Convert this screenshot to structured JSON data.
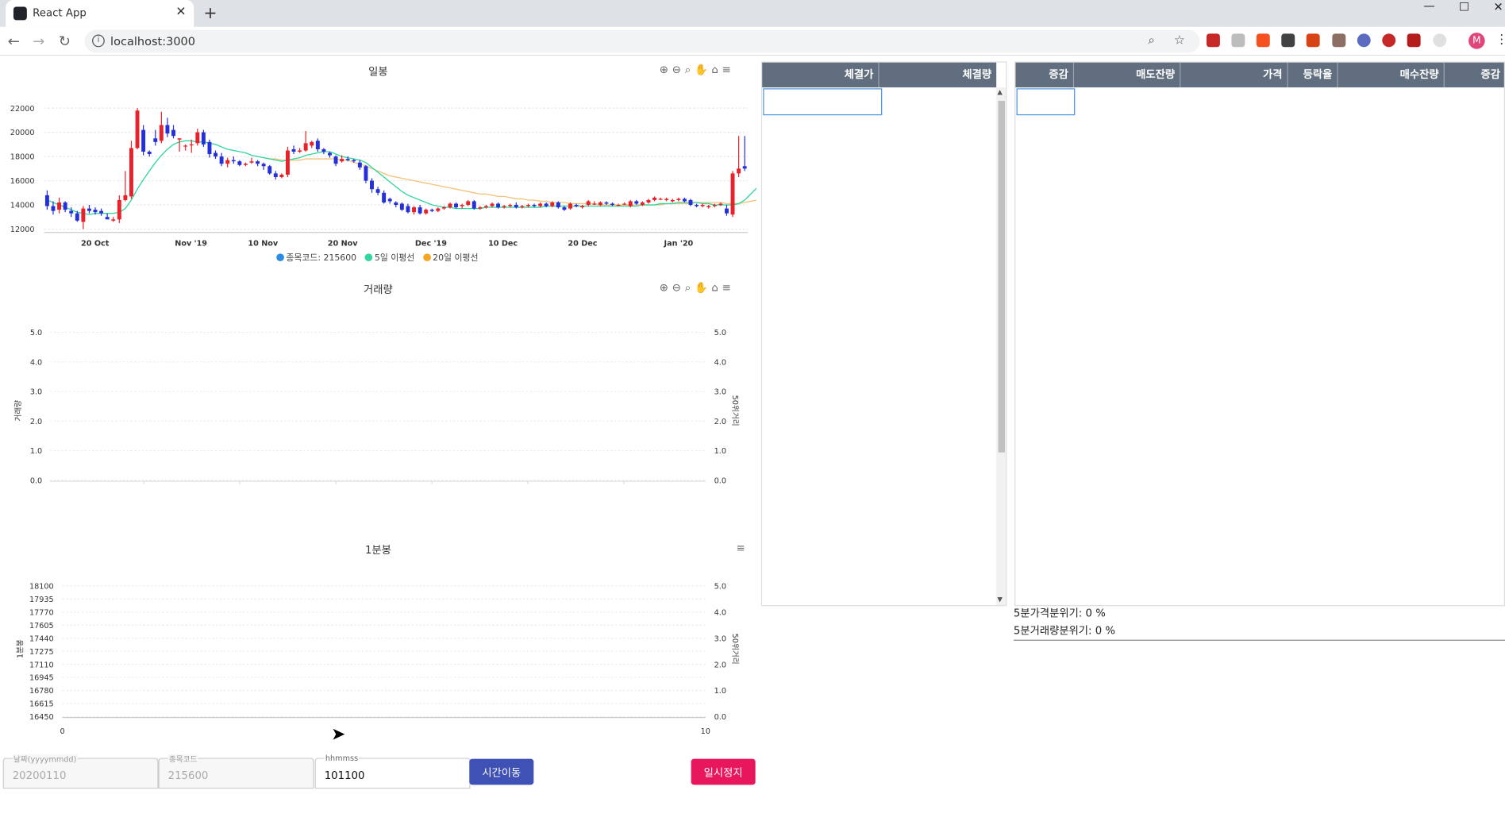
{
  "browser": {
    "tab_title": "React App",
    "tab_close": "✕",
    "new_tab": "+",
    "url": "localhost:3000",
    "avatar_letter": "M"
  },
  "daily_chart": {
    "title": "일봉",
    "legend": [
      {
        "label": "종목코드: 215600",
        "color": "#2b8ce6"
      },
      {
        "label": "5일 이평선",
        "color": "#33d69f"
      },
      {
        "label": "20일 이평선",
        "color": "#f5a623"
      }
    ]
  },
  "volume_chart": {
    "title": "거래량",
    "left_axis_title": "거래량",
    "right_axis_title": "50위거리"
  },
  "minute_chart": {
    "title": "1분봉",
    "left_axis_title": "1분봉",
    "right_axis_title": "50위거리"
  },
  "chart_data": [
    {
      "type": "candlestick",
      "title": "일봉",
      "x_ticks": [
        "20 Oct",
        "Nov '19",
        "10 Nov",
        "20 Nov",
        "Dec '19",
        "10 Dec",
        "20 Dec",
        "Jan '20"
      ],
      "y_ticks": [
        12000,
        14000,
        16000,
        18000,
        20000,
        22000
      ],
      "ylim": [
        11800,
        22600
      ],
      "up_color": "#e8212a",
      "down_color": "#2530d8",
      "candles": [
        [
          14800,
          13900,
          15200,
          13600
        ],
        [
          13900,
          13500,
          14300,
          13200
        ],
        [
          13600,
          14200,
          14600,
          13300
        ],
        [
          14200,
          13600,
          14300,
          13400
        ],
        [
          13500,
          13300,
          13800,
          13000
        ],
        [
          13300,
          12700,
          13500,
          12600
        ],
        [
          12600,
          13700,
          13900,
          12000
        ],
        [
          13700,
          13500,
          14000,
          13300
        ],
        [
          13600,
          13400,
          13800,
          13200
        ],
        [
          13500,
          13300,
          13700,
          13100
        ],
        [
          13000,
          12800,
          13300,
          12900
        ],
        [
          12700,
          12800,
          13000,
          12600
        ],
        [
          12800,
          14400,
          14800,
          12500
        ],
        [
          14400,
          14800,
          16800,
          14300
        ],
        [
          14700,
          18700,
          19300,
          14500
        ],
        [
          18700,
          21800,
          22000,
          18600
        ],
        [
          20200,
          18400,
          20600,
          18100
        ],
        [
          18400,
          18200,
          18500,
          18000
        ],
        [
          19500,
          19200,
          20200,
          18900
        ],
        [
          19300,
          20600,
          21700,
          19100
        ],
        [
          20600,
          19900,
          21200,
          19600
        ],
        [
          20200,
          19700,
          20600,
          19500
        ],
        [
          19400,
          19500,
          19500,
          18400
        ],
        [
          18900,
          18900,
          19000,
          18500
        ],
        [
          19000,
          19000,
          19400,
          18300
        ],
        [
          19100,
          20000,
          20300,
          18900
        ],
        [
          20000,
          19000,
          20200,
          18800
        ],
        [
          19200,
          18200,
          19400,
          17900
        ],
        [
          18300,
          18000,
          18500,
          17800
        ],
        [
          18000,
          17400,
          18300,
          17200
        ],
        [
          17400,
          17700,
          17900,
          17100
        ],
        [
          17700,
          17600,
          18000,
          17400
        ],
        [
          17600,
          17300,
          17700,
          17200
        ],
        [
          17300,
          17400,
          17500,
          17200
        ],
        [
          17500,
          17600,
          17900,
          17400
        ],
        [
          17600,
          17400,
          17700,
          17200
        ],
        [
          17400,
          17200,
          17500,
          16900
        ],
        [
          17200,
          16600,
          17300,
          16500
        ],
        [
          16600,
          16300,
          16800,
          16100
        ],
        [
          16300,
          16500,
          16600,
          16200
        ],
        [
          16500,
          18500,
          18800,
          16300
        ],
        [
          18600,
          18400,
          18900,
          18200
        ],
        [
          18400,
          18500,
          18700,
          18300
        ],
        [
          18500,
          19100,
          20100,
          18400
        ],
        [
          18900,
          19200,
          19300,
          18700
        ],
        [
          19300,
          18600,
          19500,
          18400
        ],
        [
          18600,
          18400,
          18700,
          18200
        ],
        [
          18300,
          18100,
          18400,
          17900
        ],
        [
          18000,
          17400,
          18100,
          17200
        ],
        [
          17600,
          17800,
          18100,
          17500
        ],
        [
          17800,
          17700,
          18000,
          17600
        ],
        [
          17700,
          17600,
          17800,
          17500
        ],
        [
          17500,
          17100,
          17700,
          16900
        ],
        [
          17200,
          16000,
          17300,
          15800
        ],
        [
          16000,
          15300,
          16200,
          15000
        ],
        [
          15300,
          15000,
          15500,
          14800
        ],
        [
          15000,
          14200,
          15200,
          14100
        ],
        [
          14500,
          14300,
          14600,
          14100
        ],
        [
          14200,
          14000,
          14300,
          13800
        ],
        [
          14100,
          13600,
          14200,
          13500
        ],
        [
          13900,
          13400,
          14100,
          13300
        ],
        [
          13400,
          13800,
          13900,
          13200
        ],
        [
          13800,
          13300,
          14000,
          13200
        ],
        [
          13300,
          13600,
          13700,
          13200
        ],
        [
          13600,
          13500,
          13700,
          13400
        ],
        [
          13500,
          13700,
          13800,
          13400
        ],
        [
          13700,
          13800,
          13900,
          13600
        ],
        [
          13800,
          14100,
          14200,
          13700
        ],
        [
          14100,
          13800,
          14200,
          13700
        ],
        [
          13900,
          14000,
          14100,
          13700
        ],
        [
          14000,
          14300,
          14400,
          13900
        ],
        [
          14300,
          13700,
          14400,
          13600
        ],
        [
          13700,
          13800,
          13900,
          13600
        ],
        [
          13800,
          13900,
          14000,
          13700
        ],
        [
          13900,
          14100,
          14200,
          13800
        ],
        [
          14100,
          13800,
          14200,
          13700
        ],
        [
          13800,
          13900,
          14000,
          13700
        ],
        [
          13900,
          14000,
          14100,
          13800
        ],
        [
          14000,
          13800,
          14200,
          13700
        ],
        [
          13800,
          13900,
          14000,
          13700
        ],
        [
          13900,
          14000,
          14100,
          13800
        ],
        [
          14000,
          13900,
          14100,
          13800
        ],
        [
          13900,
          14100,
          14200,
          13800
        ],
        [
          14100,
          13900,
          14200,
          13800
        ],
        [
          13900,
          14200,
          14300,
          13800
        ],
        [
          14200,
          13800,
          14300,
          13700
        ],
        [
          13800,
          13600,
          13900,
          13500
        ],
        [
          13700,
          14100,
          14200,
          13600
        ],
        [
          14000,
          13900,
          14100,
          13800
        ],
        [
          13800,
          13900,
          14000,
          13700
        ],
        [
          14000,
          14300,
          14400,
          13900
        ],
        [
          14100,
          14100,
          14300,
          14000
        ],
        [
          14000,
          14200,
          14300,
          13900
        ],
        [
          14200,
          14100,
          14300,
          14000
        ],
        [
          14100,
          14000,
          14200,
          13900
        ],
        [
          14000,
          14000,
          14100,
          13900
        ],
        [
          14100,
          14100,
          14200,
          14000
        ],
        [
          13900,
          14300,
          14400,
          13800
        ],
        [
          14300,
          14100,
          14400,
          14000
        ],
        [
          14000,
          14200,
          14300,
          13900
        ],
        [
          14200,
          14400,
          14500,
          14100
        ],
        [
          14400,
          14600,
          14700,
          14300
        ],
        [
          14500,
          14500,
          14600,
          14400
        ],
        [
          14400,
          14500,
          14600,
          14300
        ],
        [
          14300,
          14400,
          14500,
          14200
        ],
        [
          14400,
          14500,
          14600,
          14300
        ],
        [
          14500,
          14300,
          14600,
          14200
        ],
        [
          14400,
          14000,
          14500,
          13900
        ],
        [
          14000,
          13900,
          14100,
          13800
        ],
        [
          13900,
          14000,
          14100,
          13800
        ],
        [
          13800,
          13900,
          14000,
          13700
        ],
        [
          13900,
          14000,
          14100,
          13800
        ],
        [
          14000,
          14100,
          14200,
          13900
        ],
        [
          13700,
          13300,
          14000,
          13100
        ],
        [
          13200,
          16600,
          16800,
          13000
        ],
        [
          16600,
          17000,
          19700,
          16300
        ],
        [
          17200,
          17000,
          19700,
          16800
        ]
      ],
      "ma5": [
        14400,
        14200,
        14000,
        13800,
        13600,
        13400,
        13300,
        13200,
        13300,
        13300,
        13300,
        13300,
        13400,
        13700,
        14400,
        15300,
        16100,
        16800,
        17500,
        18100,
        18600,
        19000,
        19200,
        19300,
        19300,
        19200,
        19200,
        19100,
        19000,
        18800,
        18600,
        18500,
        18400,
        18300,
        18100,
        18000,
        17900,
        17800,
        17700,
        17600,
        17700,
        17800,
        17900,
        18100,
        18200,
        18300,
        18400,
        18400,
        18200,
        18000,
        17900,
        17800,
        17700,
        17500,
        17100,
        16700,
        16300,
        15900,
        15500,
        15100,
        14800,
        14600,
        14400,
        14200,
        14000,
        13900,
        13800,
        13800,
        13700,
        13700,
        13700,
        13700,
        13700,
        13800,
        13800,
        13800,
        13800,
        13800,
        13800,
        13800,
        13800,
        13800,
        13800,
        13900,
        13900,
        13900,
        13900,
        13900,
        13900,
        13900,
        13900,
        13900,
        13900,
        13900,
        13900,
        13900,
        13900,
        13900,
        13900,
        14000,
        14000,
        14000,
        14100,
        14100,
        14100,
        14200,
        14200,
        14200,
        14200,
        14100,
        14100,
        14000,
        14000,
        14000,
        14000,
        14100,
        14400,
        14900,
        15400
      ],
      "ma20": [
        null,
        null,
        null,
        null,
        null,
        null,
        null,
        null,
        null,
        null,
        null,
        null,
        null,
        null,
        null,
        null,
        null,
        null,
        null,
        null,
        null,
        null,
        null,
        null,
        null,
        null,
        null,
        null,
        null,
        null,
        null,
        null,
        null,
        null,
        null,
        null,
        17900,
        17800,
        17800,
        17700,
        17700,
        17700,
        17700,
        17800,
        17800,
        17800,
        17800,
        17800,
        17800,
        17700,
        17700,
        17500,
        17400,
        17200,
        17000,
        16800,
        16600,
        16400,
        16300,
        16200,
        16100,
        16000,
        15900,
        15800,
        15700,
        15600,
        15500,
        15400,
        15300,
        15200,
        15100,
        15000,
        14900,
        14900,
        14800,
        14700,
        14700,
        14600,
        14500,
        14500,
        14400,
        14400,
        14300,
        14300,
        14200,
        14200,
        14200,
        14100,
        14100,
        14100,
        14100,
        14100,
        14000,
        14000,
        14000,
        14000,
        14000,
        14000,
        14000,
        14000,
        14000,
        14000,
        14000,
        14100,
        14100,
        14100,
        14100,
        14100,
        14200,
        14200,
        14200,
        14200,
        14200,
        14100,
        14100,
        14100,
        14200,
        14300,
        14400
      ]
    },
    {
      "type": "bar",
      "title": "거래량",
      "y_ticks": [
        "0.0",
        "1.0",
        "2.0",
        "3.0",
        "4.0",
        "5.0"
      ],
      "y2_ticks": [
        "0.0",
        "1.0",
        "2.0",
        "3.0",
        "4.0",
        "5.0"
      ],
      "ylim": [
        0,
        5
      ],
      "ylabel": "거래량",
      "y2label": "50위거리",
      "values": []
    },
    {
      "type": "candlestick",
      "title": "1분봉",
      "y_ticks": [
        16450,
        16615,
        16780,
        16945,
        17110,
        17275,
        17440,
        17605,
        17770,
        17935,
        18100
      ],
      "y2_ticks": [
        "0.0",
        "1.0",
        "2.0",
        "3.0",
        "4.0",
        "5.0"
      ],
      "x_ticks": [
        "0",
        "10"
      ],
      "ylabel": "1분봉",
      "y2label": "50위거리",
      "candles": []
    }
  ],
  "form": {
    "date_label": "날짜(yyyymmdd)",
    "date_value": "20200110",
    "code_label": "종목코드",
    "code_value": "215600",
    "time_label": "hhmmss",
    "time_value": "101100",
    "move_button": "시간이동",
    "pause_button": "일시정지"
  },
  "ticks_table": {
    "headers": [
      "체결가",
      "체결량"
    ],
    "rows": []
  },
  "orderbook_table": {
    "headers": [
      "증감",
      "매도잔량",
      "가격",
      "등락율",
      "매수잔량",
      "증감"
    ],
    "rows": []
  },
  "orderbook_info": {
    "price_mood": "5분가격분위기: 0 %",
    "volume_mood": "5분거래량분위기: 0 %"
  }
}
